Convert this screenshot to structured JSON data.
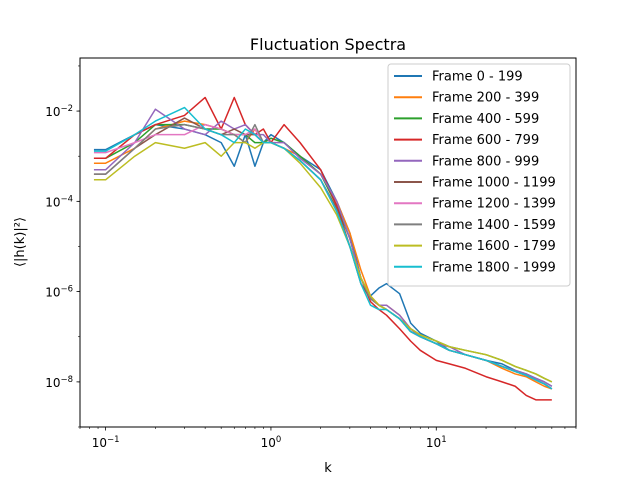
{
  "chart_data": {
    "type": "line",
    "title": "Fluctuation Spectra",
    "xlabel": "k",
    "ylabel": "⟨|h(k)|²⟩",
    "xscale": "log",
    "yscale": "log",
    "xlim": [
      0.07,
      70
    ],
    "ylim": [
      1e-09,
      0.15
    ],
    "xticks": [
      {
        "value": 0.1,
        "base": "10",
        "exp": "−1"
      },
      {
        "value": 1,
        "base": "10",
        "exp": "0"
      },
      {
        "value": 10,
        "base": "10",
        "exp": "1"
      }
    ],
    "yticks": [
      {
        "value": 1e-08,
        "base": "10",
        "exp": "−8"
      },
      {
        "value": 1e-06,
        "base": "10",
        "exp": "−6"
      },
      {
        "value": 0.0001,
        "base": "10",
        "exp": "−4"
      },
      {
        "value": 0.01,
        "base": "10",
        "exp": "−2"
      }
    ],
    "grid": false,
    "legend_position": "top-right",
    "x": [
      0.085,
      0.1,
      0.15,
      0.2,
      0.3,
      0.4,
      0.5,
      0.6,
      0.7,
      0.8,
      0.9,
      1.0,
      1.2,
      1.5,
      2.0,
      2.5,
      3.0,
      3.5,
      4.0,
      4.5,
      5.0,
      6.0,
      7.0,
      8.0,
      10.0,
      12.0,
      15.0,
      20.0,
      25.0,
      30.0,
      35.0,
      40.0,
      45.0,
      50.0
    ],
    "series": [
      {
        "name": "Frame 0 - 199",
        "color": "#1f77b4",
        "values": [
          0.0014,
          0.0014,
          0.003,
          0.005,
          0.004,
          0.003,
          0.002,
          0.0006,
          0.003,
          0.0006,
          0.002,
          0.003,
          0.002,
          0.001,
          0.0005,
          0.0001,
          2e-05,
          2e-06,
          8e-07,
          1.2e-06,
          1.5e-06,
          9e-07,
          2e-07,
          1.2e-07,
          8e-08,
          5e-08,
          4e-08,
          3e-08,
          2.5e-08,
          1.8e-08,
          1.5e-08,
          1.2e-08,
          1e-08,
          8e-09
        ]
      },
      {
        "name": "Frame 200 - 399",
        "color": "#ff7f0e",
        "values": [
          0.0007,
          0.0007,
          0.0015,
          0.004,
          0.006,
          0.005,
          0.004,
          0.003,
          0.002,
          0.004,
          0.002,
          0.002,
          0.0015,
          0.001,
          0.0004,
          0.0001,
          2e-05,
          3e-06,
          8e-07,
          5e-07,
          5e-07,
          3e-07,
          1.5e-07,
          1e-07,
          7e-08,
          5e-08,
          4e-08,
          3e-08,
          2e-08,
          1.5e-08,
          1.3e-08,
          1e-08,
          8e-09,
          7e-09
        ]
      },
      {
        "name": "Frame 400 - 599",
        "color": "#2ca02c",
        "values": [
          0.0009,
          0.0009,
          0.002,
          0.005,
          0.005,
          0.004,
          0.004,
          0.003,
          0.003,
          0.002,
          0.002,
          0.0025,
          0.002,
          0.001,
          0.0004,
          8e-05,
          1.5e-05,
          2e-06,
          7e-07,
          5e-07,
          4e-07,
          2.5e-07,
          1.5e-07,
          1.1e-07,
          8e-08,
          6e-08,
          5e-08,
          4e-08,
          3e-08,
          2.2e-08,
          1.8e-08,
          1.5e-08,
          1.2e-08,
          1e-08
        ]
      },
      {
        "name": "Frame 600 - 799",
        "color": "#d62728",
        "values": [
          0.0009,
          0.0009,
          0.003,
          0.005,
          0.008,
          0.02,
          0.004,
          0.02,
          0.005,
          0.003,
          0.004,
          0.002,
          0.005,
          0.002,
          0.0005,
          8e-05,
          1e-05,
          2e-06,
          6e-07,
          4e-07,
          3e-07,
          1.5e-07,
          8e-08,
          5e-08,
          3e-08,
          2.5e-08,
          2e-08,
          1.3e-08,
          1e-08,
          8e-09,
          5e-09,
          4e-09,
          4e-09,
          4e-09
        ]
      },
      {
        "name": "Frame 800 - 999",
        "color": "#9467bd",
        "values": [
          0.0005,
          0.0005,
          0.002,
          0.011,
          0.004,
          0.003,
          0.006,
          0.004,
          0.005,
          0.003,
          0.003,
          0.002,
          0.002,
          0.0009,
          0.0004,
          0.0001,
          1.5e-05,
          2e-06,
          7e-07,
          5e-07,
          5e-07,
          3e-07,
          1.5e-07,
          1e-07,
          7e-08,
          6e-08,
          4e-08,
          3e-08,
          2.2e-08,
          1.8e-08,
          1.5e-08,
          1.2e-08,
          1e-08,
          8e-09
        ]
      },
      {
        "name": "Frame 1000 - 1199",
        "color": "#8c564b",
        "values": [
          0.0004,
          0.0004,
          0.0015,
          0.003,
          0.007,
          0.004,
          0.003,
          0.004,
          0.003,
          0.003,
          0.002,
          0.002,
          0.0015,
          0.0008,
          0.0003,
          7e-05,
          1e-05,
          1.5e-06,
          7e-07,
          5e-07,
          4e-07,
          2.5e-07,
          1.3e-07,
          1e-07,
          7e-08,
          5e-08,
          4e-08,
          3e-08,
          2.2e-08,
          1.7e-08,
          1.4e-08,
          1.1e-08,
          9e-09,
          7e-09
        ]
      },
      {
        "name": "Frame 1200 - 1399",
        "color": "#e377c2",
        "values": [
          0.0012,
          0.0012,
          0.002,
          0.003,
          0.003,
          0.005,
          0.004,
          0.003,
          0.003,
          0.004,
          0.002,
          0.002,
          0.0015,
          0.0008,
          0.0003,
          6e-05,
          1e-05,
          2e-06,
          7e-07,
          5e-07,
          4e-07,
          2.5e-07,
          1.3e-07,
          1e-07,
          7e-08,
          5e-08,
          4e-08,
          3e-08,
          2.2e-08,
          1.7e-08,
          1.4e-08,
          1.1e-08,
          9e-09,
          7e-09
        ]
      },
      {
        "name": "Frame 1400 - 1599",
        "color": "#7f7f7f",
        "values": [
          0.0004,
          0.0004,
          0.0015,
          0.004,
          0.005,
          0.004,
          0.003,
          0.003,
          0.002,
          0.005,
          0.002,
          0.002,
          0.0015,
          0.0008,
          0.0003,
          6e-05,
          1e-05,
          2e-06,
          7e-07,
          5e-07,
          4e-07,
          2.5e-07,
          1.3e-07,
          1e-07,
          7e-08,
          5e-08,
          4e-08,
          3e-08,
          2.2e-08,
          1.7e-08,
          1.4e-08,
          1.1e-08,
          9e-09,
          7e-09
        ]
      },
      {
        "name": "Frame 1600 - 1799",
        "color": "#bcbd22",
        "values": [
          0.0003,
          0.0003,
          0.001,
          0.002,
          0.0015,
          0.002,
          0.001,
          0.002,
          0.002,
          0.0015,
          0.002,
          0.002,
          0.0015,
          0.0007,
          0.0002,
          5e-05,
          1e-05,
          2e-06,
          8e-07,
          5e-07,
          4e-07,
          2.5e-07,
          1.5e-07,
          1.1e-07,
          8e-08,
          6e-08,
          5e-08,
          4e-08,
          3e-08,
          2.2e-08,
          1.8e-08,
          1.5e-08,
          1.2e-08,
          1e-08
        ]
      },
      {
        "name": "Frame 1800 - 1999",
        "color": "#17becf",
        "values": [
          0.0013,
          0.0013,
          0.003,
          0.006,
          0.012,
          0.004,
          0.003,
          0.002,
          0.004,
          0.003,
          0.002,
          0.002,
          0.0015,
          0.0008,
          0.0003,
          6e-05,
          1e-05,
          1.5e-06,
          5e-07,
          4e-07,
          4e-07,
          2.5e-07,
          1.3e-07,
          1e-07,
          7e-08,
          5e-08,
          4e-08,
          3e-08,
          2.2e-08,
          1.7e-08,
          1.4e-08,
          1.1e-08,
          9e-09,
          7e-09
        ]
      }
    ]
  }
}
